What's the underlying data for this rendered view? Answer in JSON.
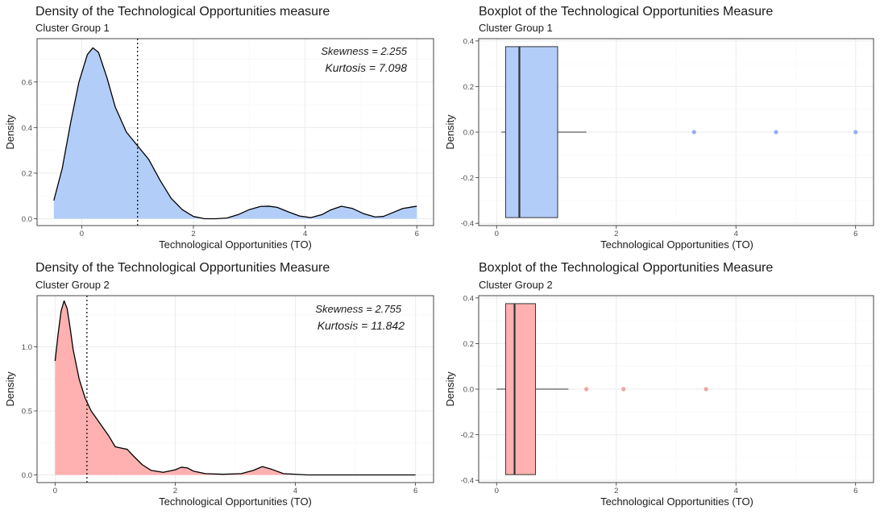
{
  "colors": {
    "cluster1": "#b3cdf9",
    "cluster1_point": "#9aaaf0",
    "cluster2": "#ffb0b0",
    "cluster2_point": "#f4a3a3",
    "line": "#000000"
  },
  "chart_data": [
    {
      "id": "density1",
      "type": "area",
      "title": "Density of the Technological Opportunities measure",
      "subtitle": "Cluster Group 1",
      "xlabel": "Technological Opportunities (TO)",
      "ylabel": "Density",
      "xlim": [
        -0.8,
        6.3
      ],
      "ylim": [
        -0.03,
        0.79
      ],
      "xticks": [
        0,
        2,
        4,
        6
      ],
      "yticks": [
        0.0,
        0.2,
        0.4,
        0.6
      ],
      "ytick_labels": [
        "0.0",
        "0.2",
        "0.4",
        "0.6"
      ],
      "x": [
        -0.5,
        -0.35,
        -0.2,
        -0.05,
        0.1,
        0.2,
        0.3,
        0.45,
        0.6,
        0.8,
        1.0,
        1.2,
        1.4,
        1.6,
        1.8,
        2.0,
        2.2,
        2.4,
        2.6,
        2.8,
        3.0,
        3.2,
        3.35,
        3.5,
        3.7,
        3.9,
        4.1,
        4.3,
        4.45,
        4.65,
        4.85,
        5.05,
        5.25,
        5.4,
        5.55,
        5.75,
        6.0
      ],
      "y": [
        0.08,
        0.22,
        0.42,
        0.6,
        0.72,
        0.75,
        0.73,
        0.62,
        0.49,
        0.38,
        0.32,
        0.26,
        0.17,
        0.09,
        0.04,
        0.01,
        0.0,
        0.0,
        0.003,
        0.018,
        0.04,
        0.054,
        0.055,
        0.05,
        0.03,
        0.012,
        0.005,
        0.018,
        0.038,
        0.055,
        0.045,
        0.022,
        0.008,
        0.01,
        0.025,
        0.045,
        0.055
      ],
      "vline": 1.0,
      "fill_key": "cluster1",
      "annotations": {
        "skewness": "Skewness = 2.255",
        "kurtosis": "Kurtosis = 7.098"
      }
    },
    {
      "id": "box1",
      "type": "boxplot",
      "title": "Boxplot of the Technological Opportunities Measure",
      "subtitle": "Cluster Group 1",
      "xlabel": "Technological Opportunities (TO)",
      "ylabel": "Density",
      "xlim": [
        -0.3,
        6.3
      ],
      "ylim": [
        -0.41,
        0.41
      ],
      "xticks": [
        0,
        2,
        4,
        6
      ],
      "yticks": [
        -0.4,
        -0.2,
        0.0,
        0.2,
        0.4
      ],
      "ytick_labels": [
        "-0.4",
        "-0.2",
        "0.0",
        "0.2",
        "0.4"
      ],
      "box": {
        "whisker_low": 0.08,
        "q1": 0.15,
        "median": 0.38,
        "q3": 1.02,
        "whisker_high": 1.5,
        "y_low": -0.375,
        "y_high": 0.375
      },
      "outliers": [
        3.3,
        4.67,
        6.0
      ],
      "fill_key": "cluster1",
      "point_key": "cluster1_point"
    },
    {
      "id": "density2",
      "type": "area",
      "title": "Density of the Technological Opportunities Measure",
      "subtitle": "Cluster Group 2",
      "xlabel": "Technological Opportunities (TO)",
      "ylabel": "Density",
      "xlim": [
        -0.3,
        6.3
      ],
      "ylim": [
        -0.06,
        1.4
      ],
      "xticks": [
        0,
        2,
        4,
        6
      ],
      "yticks": [
        0.0,
        0.5,
        1.0
      ],
      "ytick_labels": [
        "0.0",
        "0.5",
        "1.0"
      ],
      "x": [
        0.0,
        0.05,
        0.1,
        0.15,
        0.2,
        0.25,
        0.3,
        0.4,
        0.5,
        0.6,
        0.75,
        0.9,
        1.0,
        1.1,
        1.2,
        1.3,
        1.45,
        1.6,
        1.8,
        2.0,
        2.1,
        2.2,
        2.3,
        2.5,
        2.8,
        3.1,
        3.3,
        3.45,
        3.6,
        3.8,
        4.2,
        5.0,
        6.0
      ],
      "y": [
        0.89,
        1.1,
        1.28,
        1.36,
        1.3,
        1.15,
        0.98,
        0.75,
        0.6,
        0.5,
        0.4,
        0.3,
        0.22,
        0.21,
        0.2,
        0.15,
        0.08,
        0.035,
        0.02,
        0.04,
        0.06,
        0.055,
        0.03,
        0.01,
        0.005,
        0.01,
        0.035,
        0.065,
        0.045,
        0.01,
        0.0,
        0.0,
        0.0
      ],
      "vline": 0.53,
      "fill_key": "cluster2",
      "annotations": {
        "skewness": "Skewness = 2.755",
        "kurtosis": "Kurtosis = 11.842"
      }
    },
    {
      "id": "box2",
      "type": "boxplot",
      "title": "Boxplot of the Technological Opportunities Measure",
      "subtitle": "Cluster Group 2",
      "xlabel": "Technological Opportunities (TO)",
      "ylabel": "Density",
      "xlim": [
        -0.3,
        6.3
      ],
      "ylim": [
        -0.41,
        0.41
      ],
      "xticks": [
        0,
        2,
        4,
        6
      ],
      "yticks": [
        -0.4,
        -0.2,
        0.0,
        0.2,
        0.4
      ],
      "ytick_labels": [
        "-0.4",
        "-0.2",
        "0.0",
        "0.2",
        "0.4"
      ],
      "box": {
        "whisker_low": 0.0,
        "q1": 0.15,
        "median": 0.3,
        "q3": 0.65,
        "whisker_high": 1.2,
        "y_low": -0.375,
        "y_high": 0.375
      },
      "outliers": [
        1.5,
        2.12,
        3.5
      ],
      "fill_key": "cluster2",
      "point_key": "cluster2_point"
    }
  ]
}
